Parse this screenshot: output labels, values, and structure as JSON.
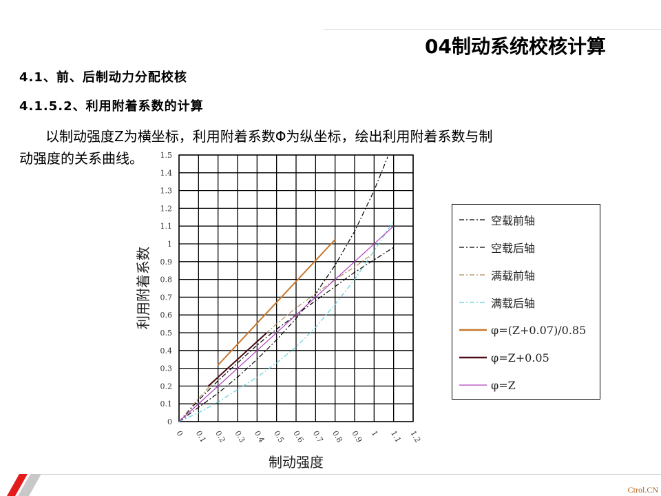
{
  "header": {
    "title": "04制动系统校核计算"
  },
  "headings": [
    "4.1、前、后制动力分配校核",
    "4.1.5.2、利用附着系数的计算"
  ],
  "paragraph": [
    "以制动强度Z为横坐标，利用附着系数Φ为纵坐标，绘出利用附着系数与制",
    "动强度的关系曲线。"
  ],
  "footer": {
    "brand": "Ctrol.CN"
  },
  "colors": {
    "accent": "#e31b1b",
    "gray_stripe": "#c8c8c8"
  },
  "chart_data": {
    "type": "line",
    "title": "",
    "xlabel": "制动强度",
    "ylabel": "利用附着系数",
    "xlim": [
      0,
      1.2
    ],
    "ylim": [
      0,
      1.5
    ],
    "grid": true,
    "legend_position": "right",
    "x_ticks": [
      "0",
      "0.1",
      "0.2",
      "0.3",
      "0.4",
      "0.5",
      "0.6",
      "0.7",
      "0.8",
      "0.9",
      "1",
      "1.1",
      "1.2"
    ],
    "y_ticks": [
      "0",
      "0.1",
      "0.2",
      "0.3",
      "0.4",
      "0.5",
      "0.6",
      "0.7",
      "0.8",
      "0.9",
      "1",
      "1.1",
      "1.2",
      "1.3",
      "1.4",
      "1.5"
    ],
    "series": [
      {
        "name": "空载前轴",
        "color": "#000000",
        "style": "dashdot",
        "x": [
          0,
          0.1,
          0.2,
          0.3,
          0.4,
          0.5,
          0.6,
          0.7,
          0.8,
          0.9,
          1.0,
          1.07
        ],
        "y": [
          0,
          0.08,
          0.16,
          0.25,
          0.35,
          0.46,
          0.58,
          0.72,
          0.88,
          1.07,
          1.3,
          1.49
        ]
      },
      {
        "name": "空载后轴",
        "color": "#000000",
        "style": "dashdot",
        "x": [
          0,
          0.1,
          0.2,
          0.3,
          0.4,
          0.5,
          0.6,
          0.7,
          0.8,
          0.9,
          1.0,
          1.1
        ],
        "y": [
          0,
          0.12,
          0.23,
          0.33,
          0.43,
          0.52,
          0.6,
          0.68,
          0.76,
          0.84,
          0.91,
          0.98
        ]
      },
      {
        "name": "满载前轴",
        "color": "#b08a60",
        "style": "dashdot",
        "x": [
          0,
          0.1,
          0.2,
          0.3,
          0.4,
          0.5,
          0.6,
          0.7,
          0.8,
          0.9,
          1.0
        ],
        "y": [
          0,
          0.13,
          0.25,
          0.35,
          0.45,
          0.55,
          0.64,
          0.72,
          0.8,
          0.87,
          0.95
        ]
      },
      {
        "name": "满载后轴",
        "color": "#5fd0d8",
        "style": "dashdot",
        "x": [
          0,
          0.1,
          0.2,
          0.3,
          0.4,
          0.5,
          0.6,
          0.7,
          0.8,
          0.9,
          1.0,
          1.1
        ],
        "y": [
          0,
          0.05,
          0.11,
          0.18,
          0.25,
          0.33,
          0.42,
          0.53,
          0.66,
          0.8,
          0.96,
          1.13
        ]
      },
      {
        "name": "φ=(Z+0.07)/0.85",
        "color": "#c8782e",
        "style": "solid",
        "x": [
          0.2,
          0.8
        ],
        "y": [
          0.318,
          1.024
        ]
      },
      {
        "name": "φ=Z+0.05",
        "color": "#4a0a14",
        "style": "solid",
        "x": [
          0.15,
          0.45
        ],
        "y": [
          0.2,
          0.5
        ]
      },
      {
        "name": "φ=Z",
        "color": "#b040c0",
        "style": "solid",
        "x": [
          0,
          1.1
        ],
        "y": [
          0,
          1.1
        ]
      }
    ]
  }
}
